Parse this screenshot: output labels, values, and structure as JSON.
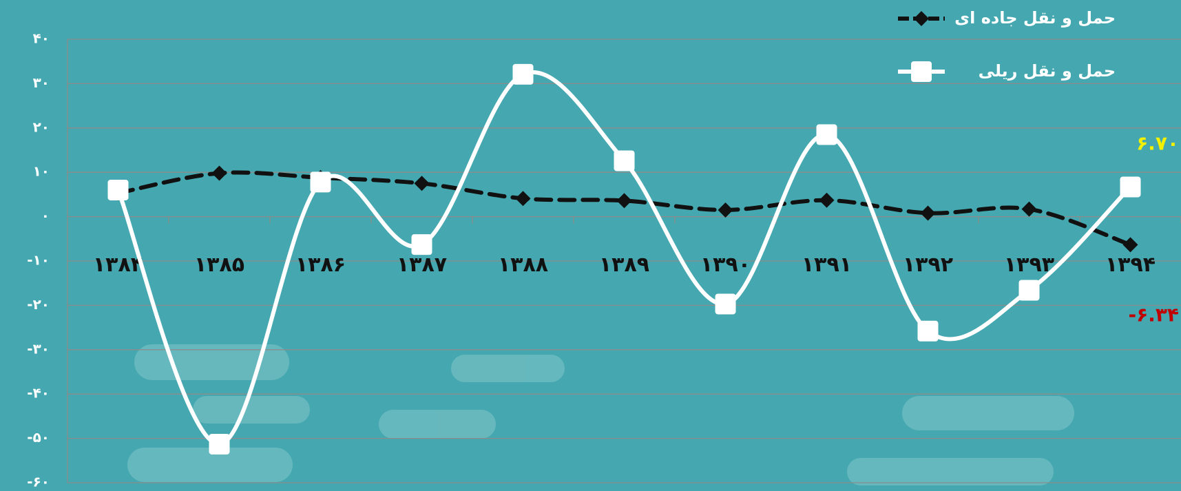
{
  "chart_data": {
    "type": "line",
    "categories": [
      "۱۳۸۴",
      "۱۳۸۵",
      "۱۳۸۶",
      "۱۳۸۷",
      "۱۳۸۸",
      "۱۳۸۹",
      "۱۳۹۰",
      "۱۳۹۱",
      "۱۳۹۲",
      "۱۳۹۳",
      "۱۳۹۴"
    ],
    "series": [
      {
        "name": "حمل و نقل جاده ای",
        "color": "#111111",
        "marker": "diamond",
        "dashed": true,
        "values": [
          5.3,
          9.8,
          8.8,
          7.5,
          4.1,
          3.6,
          1.5,
          3.7,
          0.8,
          1.7,
          -6.34
        ]
      },
      {
        "name": "حمل و نقل ریلی",
        "color": "#ffffff",
        "marker": "square",
        "dashed": false,
        "values": [
          6.0,
          -51.3,
          7.8,
          -6.3,
          32.1,
          12.6,
          -19.7,
          18.5,
          -25.8,
          -16.6,
          6.7
        ]
      }
    ],
    "annotations": [
      {
        "text": "۶.۷۰",
        "color": "#f2f200"
      },
      {
        "text": "-۶.۳۴",
        "color": "#c00000"
      }
    ],
    "ylim": [
      -60,
      40
    ],
    "yticks": [
      {
        "value": 40,
        "label": "۴۰"
      },
      {
        "value": 30,
        "label": "۳۰"
      },
      {
        "value": 20,
        "label": "۲۰"
      },
      {
        "value": 10,
        "label": "۱۰"
      },
      {
        "value": 0,
        "label": "۰"
      },
      {
        "value": -10,
        "label": "-۱۰"
      },
      {
        "value": -20,
        "label": "-۲۰"
      },
      {
        "value": -30,
        "label": "-۳۰"
      },
      {
        "value": -40,
        "label": "-۴۰"
      },
      {
        "value": -50,
        "label": "-۵۰"
      },
      {
        "value": -60,
        "label": "-۶۰"
      }
    ],
    "grid": true
  }
}
